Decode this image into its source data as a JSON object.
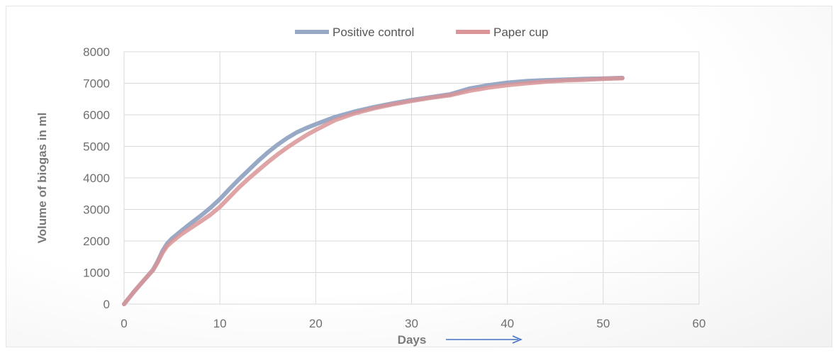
{
  "chart_data": {
    "type": "line",
    "title": "",
    "xlabel": "Days",
    "ylabel": "Volume of biogas in ml",
    "xlim": [
      0,
      60
    ],
    "ylim": [
      0,
      8000
    ],
    "x_ticks": [
      0,
      10,
      20,
      30,
      40,
      50,
      60
    ],
    "y_ticks": [
      0,
      1000,
      2000,
      3000,
      4000,
      5000,
      6000,
      7000,
      8000
    ],
    "grid": true,
    "legend_position": "top-center",
    "series": [
      {
        "name": "Positive control",
        "color": "#98a9c6",
        "x": [
          0,
          1,
          2,
          3,
          3.5,
          4,
          4.5,
          5,
          6,
          7,
          8,
          9,
          10,
          11,
          12,
          13,
          14,
          15,
          16,
          17,
          18,
          19,
          20,
          22,
          24,
          26,
          28,
          30,
          32,
          34,
          36,
          38,
          40,
          42,
          44,
          46,
          48,
          50,
          52
        ],
        "y": [
          0,
          380,
          730,
          1080,
          1350,
          1680,
          1920,
          2080,
          2330,
          2570,
          2800,
          3050,
          3330,
          3650,
          3960,
          4250,
          4540,
          4810,
          5050,
          5260,
          5440,
          5580,
          5700,
          5930,
          6100,
          6240,
          6360,
          6470,
          6560,
          6650,
          6830,
          6940,
          7020,
          7070,
          7100,
          7120,
          7140,
          7150,
          7170
        ]
      },
      {
        "name": "Paper cup",
        "color": "#d99597",
        "x": [
          0,
          1,
          2,
          3,
          3.5,
          4,
          4.5,
          5,
          6,
          7,
          8,
          9,
          10,
          11,
          12,
          13,
          14,
          15,
          16,
          17,
          18,
          19,
          20,
          22,
          24,
          26,
          28,
          30,
          32,
          34,
          36,
          38,
          40,
          42,
          44,
          46,
          48,
          50,
          52
        ],
        "y": [
          0,
          380,
          730,
          1070,
          1320,
          1620,
          1840,
          1980,
          2220,
          2420,
          2620,
          2830,
          3080,
          3390,
          3700,
          3980,
          4240,
          4500,
          4740,
          4960,
          5160,
          5350,
          5520,
          5830,
          6040,
          6200,
          6330,
          6440,
          6540,
          6620,
          6760,
          6860,
          6940,
          7000,
          7050,
          7090,
          7110,
          7140,
          7160
        ]
      }
    ]
  }
}
